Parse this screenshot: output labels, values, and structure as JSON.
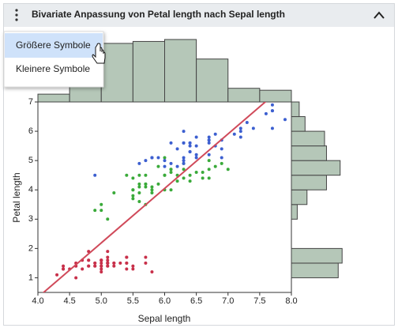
{
  "header": {
    "title": "Bivariate Anpassung von Petal length nach Sepal length"
  },
  "menu": {
    "items": [
      "Größere Symbole",
      "Kleinere Symbole"
    ]
  },
  "chart_data": {
    "type": "scatter",
    "x_label": "Sepal length",
    "y_label": "Petal length",
    "xlim": [
      4,
      8
    ],
    "ylim": [
      0.5,
      7
    ],
    "xticks": [
      {
        "value": 4,
        "label": "4.0"
      },
      {
        "value": 4.5,
        "label": "4.5"
      },
      {
        "value": 5,
        "label": "5.0"
      },
      {
        "value": 5.5,
        "label": "5.5"
      },
      {
        "value": 6,
        "label": "6.0"
      },
      {
        "value": 6.5,
        "label": "6.5"
      },
      {
        "value": 7,
        "label": "7.0"
      },
      {
        "value": 7.5,
        "label": "7.5"
      },
      {
        "value": 8,
        "label": "8.0"
      }
    ],
    "yticks": [
      1,
      2,
      3,
      4,
      5,
      6,
      7
    ],
    "series": [
      {
        "color": "#c8304a",
        "x": [
          5.1,
          4.9,
          4.7,
          4.6,
          5.0,
          5.4,
          4.6,
          5.0,
          4.4,
          4.9,
          5.4,
          4.8,
          4.8,
          4.3,
          5.8,
          5.7,
          5.4,
          5.1,
          5.7,
          5.1,
          5.4,
          5.1,
          4.6,
          5.1,
          4.8,
          5.0,
          5.0,
          5.2,
          5.2,
          4.7,
          4.8,
          5.4,
          5.2,
          5.5,
          4.9,
          5.0,
          5.5,
          4.9,
          4.4,
          5.1,
          5.0,
          4.5,
          4.4,
          5.0,
          5.1,
          4.8,
          5.1,
          4.6,
          5.3,
          5.0
        ],
        "values": [
          1.4,
          1.4,
          1.3,
          1.5,
          1.4,
          1.7,
          1.4,
          1.5,
          1.4,
          1.5,
          1.5,
          1.6,
          1.4,
          1.1,
          1.2,
          1.5,
          1.3,
          1.4,
          1.7,
          1.5,
          1.7,
          1.5,
          1.0,
          1.7,
          1.9,
          1.6,
          1.6,
          1.5,
          1.4,
          1.6,
          1.6,
          1.5,
          1.5,
          1.4,
          1.5,
          1.2,
          1.3,
          1.4,
          1.3,
          1.5,
          1.3,
          1.3,
          1.3,
          1.6,
          1.9,
          1.4,
          1.6,
          1.4,
          1.5,
          1.4
        ]
      },
      {
        "color": "#3aaa3a",
        "x": [
          7.0,
          6.4,
          6.9,
          5.5,
          6.5,
          5.7,
          6.3,
          4.9,
          6.6,
          5.2,
          5.0,
          5.9,
          6.0,
          6.1,
          5.6,
          6.7,
          5.6,
          5.8,
          6.2,
          5.6,
          5.9,
          6.1,
          6.3,
          6.1,
          6.4,
          6.6,
          6.8,
          6.7,
          6.0,
          5.7,
          5.5,
          5.5,
          5.8,
          6.0,
          5.4,
          6.0,
          6.7,
          6.3,
          5.6,
          5.5,
          5.5,
          6.1,
          5.8,
          5.0,
          5.6,
          5.7,
          5.7,
          6.2,
          5.1,
          5.7
        ],
        "values": [
          4.7,
          4.5,
          4.9,
          4.0,
          4.6,
          4.5,
          4.7,
          3.3,
          4.6,
          3.9,
          3.5,
          4.2,
          4.0,
          4.7,
          3.6,
          4.4,
          4.5,
          4.1,
          4.5,
          3.9,
          4.8,
          4.0,
          4.9,
          4.7,
          4.3,
          4.4,
          4.8,
          5.0,
          4.5,
          3.5,
          3.8,
          3.7,
          3.9,
          5.1,
          4.5,
          4.5,
          4.7,
          4.4,
          4.1,
          4.0,
          4.4,
          4.6,
          4.0,
          3.3,
          4.2,
          4.2,
          4.2,
          4.3,
          3.0,
          4.1
        ]
      },
      {
        "color": "#3c5fd0",
        "x": [
          6.3,
          5.8,
          7.1,
          6.3,
          6.5,
          7.6,
          4.9,
          7.3,
          6.7,
          7.2,
          6.5,
          6.4,
          6.8,
          5.7,
          5.8,
          6.4,
          6.5,
          7.7,
          7.7,
          6.0,
          6.9,
          5.6,
          7.7,
          6.3,
          6.7,
          7.2,
          6.2,
          6.1,
          6.4,
          7.2,
          7.4,
          7.9,
          6.4,
          6.3,
          6.1,
          7.7,
          6.3,
          6.4,
          6.0,
          6.9,
          6.7,
          6.9,
          5.8,
          6.8,
          6.7,
          6.7,
          6.3,
          6.5,
          6.2,
          5.9
        ],
        "values": [
          6.0,
          5.1,
          5.9,
          5.6,
          5.8,
          6.6,
          4.5,
          6.3,
          5.8,
          6.1,
          5.1,
          5.3,
          5.5,
          5.0,
          5.1,
          5.3,
          5.5,
          6.7,
          6.9,
          5.0,
          5.7,
          4.9,
          6.7,
          4.9,
          5.7,
          6.0,
          4.8,
          4.9,
          5.6,
          5.8,
          6.1,
          6.4,
          5.6,
          5.1,
          5.6,
          6.1,
          5.6,
          5.5,
          4.8,
          5.4,
          5.6,
          5.1,
          5.1,
          5.9,
          5.7,
          5.2,
          5.0,
          5.2,
          5.4,
          5.1
        ]
      }
    ],
    "fit": {
      "intercept": -7.101,
      "slope": 1.8584,
      "color": "#d04a5a"
    },
    "top_histogram": {
      "bins": [
        4,
        4.5,
        5,
        5.5,
        6,
        6.5,
        7,
        7.5,
        8
      ],
      "counts": [
        4,
        18,
        30,
        31,
        32,
        22,
        7,
        6
      ],
      "color": "#b5c7b8"
    },
    "right_histogram": {
      "bins": [
        1,
        1.5,
        2,
        2.5,
        3,
        3.5,
        4,
        4.5,
        5,
        5.5,
        6,
        6.5,
        7
      ],
      "counts": [
        24,
        26,
        0,
        0,
        3,
        8,
        18,
        25,
        18,
        17,
        7,
        4
      ],
      "color": "#b5c7b8"
    }
  }
}
